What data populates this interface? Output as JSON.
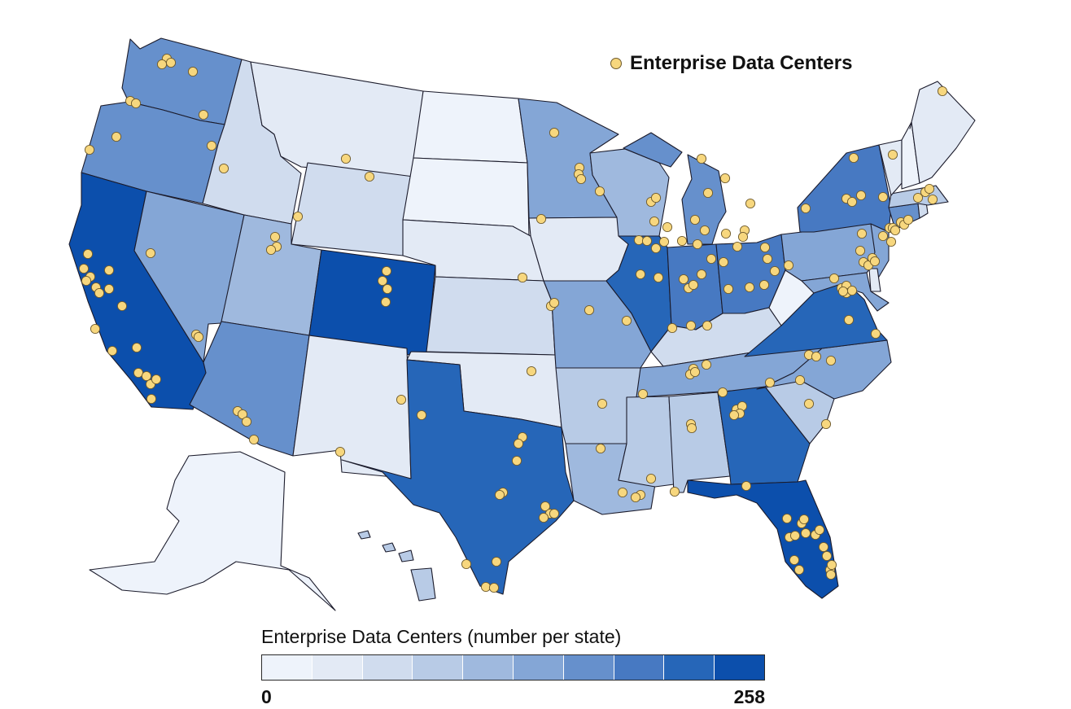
{
  "map": {
    "type": "choropleth",
    "region": "United States",
    "point_legend_label": "Enterprise Data Centers",
    "scale_title": "Enterprise Data Centers (number per state)",
    "scale_min": "0",
    "scale_max": "258",
    "scale_colors": [
      "#eef3fb",
      "#e3eaf5",
      "#d0dcee",
      "#b8cbe6",
      "#9fb9de",
      "#84a6d6",
      "#6690cc",
      "#4779c2",
      "#2666b8",
      "#0c4fac"
    ],
    "point_color": "#f7d77e",
    "state_bins": {
      "WA": 7,
      "OR": 7,
      "CA": 10,
      "NV": 6,
      "ID": 3,
      "MT": 2,
      "WY": 3,
      "UT": 5,
      "AZ": 7,
      "CO": 10,
      "NM": 2,
      "ND": 1,
      "SD": 1,
      "NE": 2,
      "KS": 3,
      "OK": 2,
      "TX": 9,
      "MN": 6,
      "IA": 2,
      "MO": 6,
      "AR": 4,
      "LA": 5,
      "WI": 5,
      "IL": 9,
      "MI": 7,
      "IN": 8,
      "OH": 8,
      "KY": 3,
      "TN": 6,
      "MS": 4,
      "AL": 4,
      "GA": 9,
      "FL": 10,
      "SC": 4,
      "NC": 6,
      "VA": 9,
      "WV": 1,
      "PA": 6,
      "NY": 8,
      "ME": 2,
      "NH": 1,
      "VT": 2,
      "MA": 4,
      "CT": 7,
      "RI": 3,
      "NJ": 6,
      "DE": 2,
      "MD": 6,
      "AK": 1,
      "HI": 4
    }
  }
}
